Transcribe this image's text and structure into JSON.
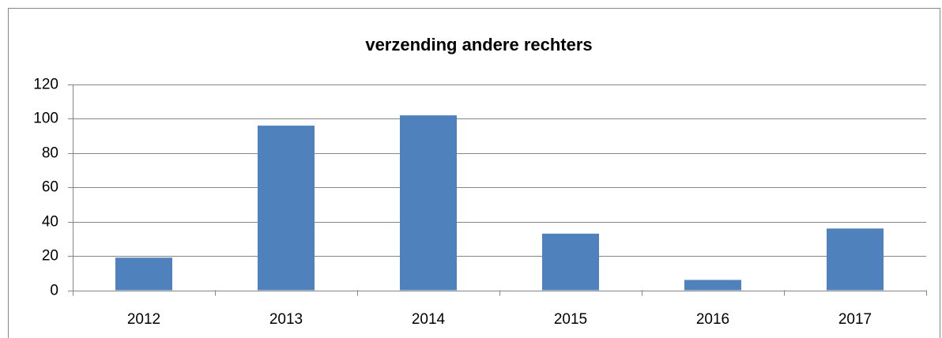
{
  "chart_data": {
    "type": "bar",
    "title": "verzending andere rechters",
    "categories": [
      "2012",
      "2013",
      "2014",
      "2015",
      "2016",
      "2017"
    ],
    "values": [
      19,
      96,
      102,
      33,
      6,
      36
    ],
    "color": "#4f81bd",
    "ylim": [
      0,
      120
    ],
    "yticks": [
      0,
      20,
      40,
      60,
      80,
      100,
      120
    ],
    "grid": true
  }
}
